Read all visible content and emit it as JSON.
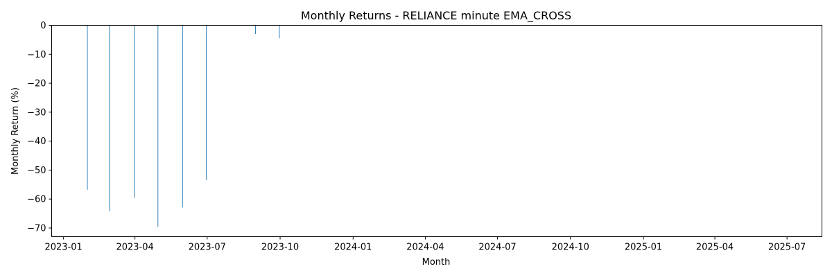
{
  "chart_data": {
    "type": "bar",
    "title": "Monthly Returns - RELIANCE minute EMA_CROSS",
    "xlabel": "Month",
    "ylabel": "Monthly Return (%)",
    "ylim": [
      -73,
      0
    ],
    "xlim": [
      "2022-12-17",
      "2025-08-14"
    ],
    "grid": false,
    "bar_color": "#1f77b4",
    "yticks": [
      0,
      -10,
      -20,
      -30,
      -40,
      -50,
      -60,
      -70
    ],
    "xticks": [
      "2023-01",
      "2023-04",
      "2023-07",
      "2023-10",
      "2024-01",
      "2024-04",
      "2024-07",
      "2024-10",
      "2025-01",
      "2025-04",
      "2025-07"
    ],
    "xtick_dates": [
      "2023-01-01",
      "2023-04-01",
      "2023-07-01",
      "2023-10-01",
      "2024-01-01",
      "2024-04-01",
      "2024-07-01",
      "2024-10-01",
      "2025-01-01",
      "2025-04-01",
      "2025-07-01"
    ],
    "x": [
      "2023-01-31",
      "2023-02-28",
      "2023-03-31",
      "2023-04-30",
      "2023-05-31",
      "2023-06-30",
      "2023-07-31",
      "2023-08-31",
      "2023-09-30"
    ],
    "values": [
      -56.8,
      -64.2,
      -59.6,
      -69.6,
      -62.9,
      -53.4,
      0,
      -3.0,
      -4.5
    ]
  }
}
